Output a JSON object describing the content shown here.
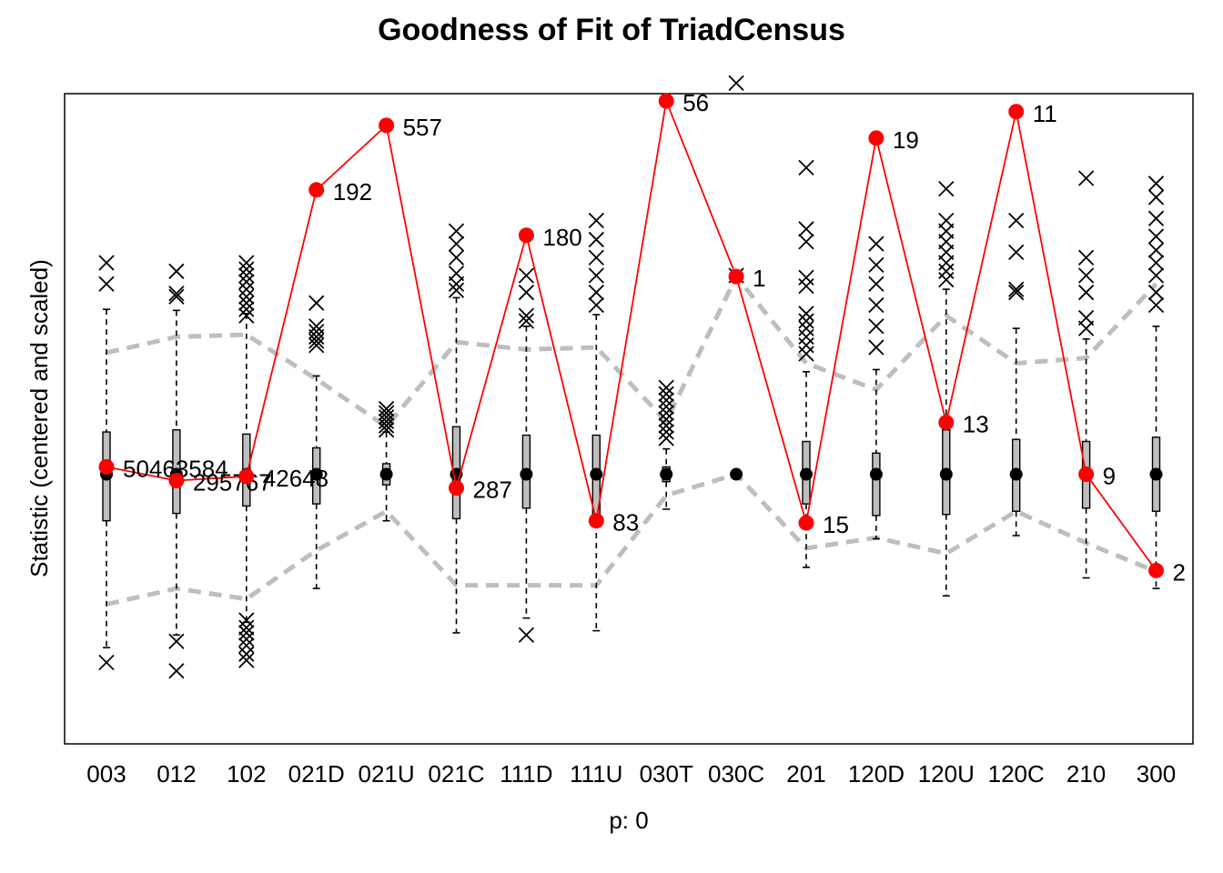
{
  "chart_data": {
    "type": "boxplot",
    "title": "Goodness of Fit of TriadCensus",
    "xlabel": "p: 0",
    "ylabel": "Statistic (centered and scaled)",
    "categories": [
      "003",
      "012",
      "102",
      "021D",
      "021U",
      "021C",
      "111D",
      "111U",
      "030T",
      "030C",
      "201",
      "120D",
      "120U",
      "120C",
      "210",
      "300"
    ],
    "ylim": [
      -2.55,
      3.6
    ],
    "grid": false,
    "observed": {
      "name": "observed",
      "color": "#ff0000",
      "values": [
        0.07,
        -0.06,
        -0.02,
        2.69,
        3.3,
        -0.13,
        2.26,
        -0.44,
        3.53,
        1.87,
        -0.46,
        3.18,
        0.49,
        3.43,
        0.0,
        -0.91
      ],
      "labels": [
        "50463584",
        "295767",
        "42648",
        "192",
        "557",
        "287",
        "180",
        "83",
        "56",
        "1",
        "15",
        "19",
        "13",
        "11",
        "9",
        "2"
      ]
    },
    "simulated_median": [
      0,
      0,
      0,
      0,
      0,
      0,
      0,
      0,
      0,
      0,
      0,
      0,
      0,
      0,
      0,
      0
    ],
    "boxes": [
      {
        "q1": -0.44,
        "q3": 0.4,
        "wlo": -1.64,
        "whi": 1.56
      },
      {
        "q1": -0.37,
        "q3": 0.42,
        "wlo": -1.52,
        "whi": 1.55
      },
      {
        "q1": -0.3,
        "q3": 0.38,
        "wlo": -1.4,
        "whi": 1.52
      },
      {
        "q1": -0.28,
        "q3": 0.25,
        "wlo": -1.08,
        "whi": 0.93
      },
      {
        "q1": -0.1,
        "q3": 0.1,
        "wlo": -0.44,
        "whi": 0.4
      },
      {
        "q1": -0.42,
        "q3": 0.45,
        "wlo": -1.5,
        "whi": 1.67
      },
      {
        "q1": -0.32,
        "q3": 0.37,
        "wlo": -1.36,
        "whi": 1.4
      },
      {
        "q1": -0.46,
        "q3": 0.37,
        "wlo": -1.48,
        "whi": 1.51
      },
      {
        "q1": -0.07,
        "q3": 0.07,
        "wlo": -0.33,
        "whi": 0.24
      },
      {
        "q1": 0.0,
        "q3": 0.0,
        "wlo": 0.0,
        "whi": 0.0
      },
      {
        "q1": -0.28,
        "q3": 0.31,
        "wlo": -0.88,
        "whi": 0.97
      },
      {
        "q1": -0.39,
        "q3": 0.2,
        "wlo": -0.61,
        "whi": 0.99
      },
      {
        "q1": -0.38,
        "q3": 0.42,
        "wlo": -1.15,
        "whi": 1.75
      },
      {
        "q1": -0.35,
        "q3": 0.33,
        "wlo": -0.58,
        "whi": 1.38
      },
      {
        "q1": -0.32,
        "q3": 0.31,
        "wlo": -0.98,
        "whi": 1.28
      },
      {
        "q1": -0.35,
        "q3": 0.35,
        "wlo": -1.08,
        "whi": 1.4
      }
    ],
    "outliers": [
      [
        2.0,
        1.8,
        -1.78
      ],
      [
        1.92,
        1.71,
        1.68,
        -1.58,
        -1.86
      ],
      [
        2.0,
        1.94,
        1.88,
        1.82,
        1.75,
        1.68,
        1.62,
        1.56,
        1.5,
        -1.38,
        -1.45,
        -1.5,
        -1.56,
        -1.62,
        -1.7,
        -1.76
      ],
      [
        1.62,
        1.4,
        1.35,
        1.3,
        1.26,
        1.22
      ],
      [
        0.62,
        0.58,
        0.54,
        0.5,
        0.46,
        0.42
      ],
      [
        2.3,
        2.18,
        2.05,
        1.9,
        1.8,
        1.74
      ],
      [
        1.88,
        1.72,
        1.5,
        1.45,
        -1.52
      ],
      [
        2.4,
        2.22,
        2.05,
        1.88,
        1.72,
        1.6
      ],
      [
        0.82,
        0.76,
        0.7,
        0.64,
        0.58,
        0.52,
        0.46,
        0.4,
        0.34
      ],
      [
        3.7,
        1.88
      ],
      [
        2.9,
        2.32,
        2.2,
        1.86,
        1.78,
        1.52,
        1.45,
        1.38,
        1.3,
        1.22,
        1.14
      ],
      [
        2.18,
        1.98,
        1.8,
        1.6,
        1.4,
        1.2
      ],
      [
        2.7,
        2.4,
        2.3,
        2.2,
        2.1,
        2.0,
        1.92,
        1.84
      ],
      [
        2.4,
        2.1,
        1.75,
        1.72
      ],
      [
        2.8,
        2.05,
        1.88,
        1.72,
        1.48,
        1.38
      ],
      [
        2.75,
        2.62,
        2.42,
        2.25,
        2.12,
        2.0,
        1.88,
        1.72,
        1.6
      ]
    ],
    "band_upper": [
      1.15,
      1.3,
      1.32,
      0.9,
      0.45,
      1.25,
      1.18,
      1.2,
      0.5,
      1.87,
      1.05,
      0.8,
      1.5,
      1.05,
      1.1,
      1.8
    ],
    "band_lower": [
      -1.23,
      -1.08,
      -1.18,
      -0.72,
      -0.35,
      -1.05,
      -1.05,
      -1.05,
      -0.2,
      0.0,
      -0.7,
      -0.6,
      -0.75,
      -0.35,
      -0.65,
      -0.92
    ],
    "band_color": "#bebebe",
    "box_fill": "#bebebe",
    "median_color": "#000000"
  }
}
